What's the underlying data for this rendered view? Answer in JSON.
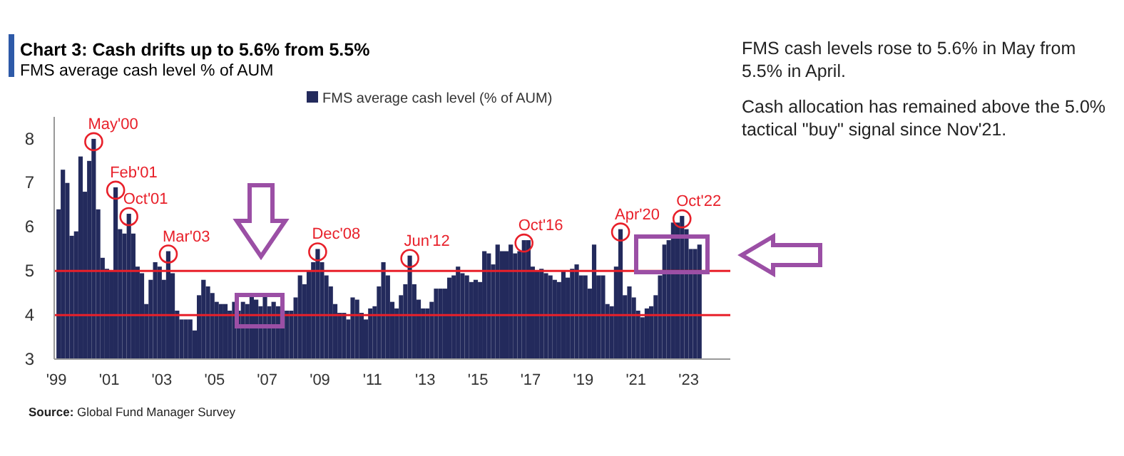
{
  "chart_data": {
    "type": "bar",
    "title": "Chart 3: Cash drifts up to 5.6% from 5.5%",
    "subtitle": "FMS average cash level % of AUM",
    "x": [
      "1999-01",
      "1999-03",
      "1999-05",
      "1999-07",
      "1999-09",
      "1999-11",
      "2000-01",
      "2000-03",
      "2000-05",
      "2000-07",
      "2000-09",
      "2000-11",
      "2001-01",
      "2001-03",
      "2001-05",
      "2001-07",
      "2001-09",
      "2001-11",
      "2002-01",
      "2002-03",
      "2002-05",
      "2002-07",
      "2002-09",
      "2002-11",
      "2003-01",
      "2003-03",
      "2003-05",
      "2003-07",
      "2003-09",
      "2003-11",
      "2004-01",
      "2004-03",
      "2004-05",
      "2004-07",
      "2004-09",
      "2004-11",
      "2005-01",
      "2005-03",
      "2005-05",
      "2005-07",
      "2005-09",
      "2005-11",
      "2006-01",
      "2006-03",
      "2006-05",
      "2006-07",
      "2006-09",
      "2006-11",
      "2007-01",
      "2007-03",
      "2007-05",
      "2007-07",
      "2007-09",
      "2007-11",
      "2008-01",
      "2008-03",
      "2008-05",
      "2008-07",
      "2008-09",
      "2008-11",
      "2009-01",
      "2009-03",
      "2009-05",
      "2009-07",
      "2009-09",
      "2009-11",
      "2010-01",
      "2010-03",
      "2010-05",
      "2010-07",
      "2010-09",
      "2010-11",
      "2011-01",
      "2011-03",
      "2011-05",
      "2011-07",
      "2011-09",
      "2011-11",
      "2012-01",
      "2012-03",
      "2012-05",
      "2012-07",
      "2012-09",
      "2012-11",
      "2013-01",
      "2013-03",
      "2013-05",
      "2013-07",
      "2013-09",
      "2013-11",
      "2014-01",
      "2014-03",
      "2014-05",
      "2014-07",
      "2014-09",
      "2014-11",
      "2015-01",
      "2015-03",
      "2015-05",
      "2015-07",
      "2015-09",
      "2015-11",
      "2016-01",
      "2016-03",
      "2016-05",
      "2016-07",
      "2016-09",
      "2016-11",
      "2017-01",
      "2017-03",
      "2017-05",
      "2017-07",
      "2017-09",
      "2017-11",
      "2018-01",
      "2018-03",
      "2018-05",
      "2018-07",
      "2018-09",
      "2018-11",
      "2019-01",
      "2019-03",
      "2019-05",
      "2019-07",
      "2019-09",
      "2019-11",
      "2020-01",
      "2020-03",
      "2020-05",
      "2020-07",
      "2020-09",
      "2020-11",
      "2021-01",
      "2021-03",
      "2021-05",
      "2021-07",
      "2021-09",
      "2021-11",
      "2022-01",
      "2022-03",
      "2022-05",
      "2022-07",
      "2022-09",
      "2022-11",
      "2023-01",
      "2023-03",
      "2023-05"
    ],
    "series": [
      {
        "name": "FMS average cash level (% of AUM)",
        "color": "#232a5c",
        "values": [
          6.4,
          7.3,
          7.0,
          5.8,
          5.9,
          7.6,
          6.8,
          7.5,
          8.0,
          6.4,
          5.3,
          5.05,
          5.0,
          6.9,
          5.95,
          5.85,
          6.3,
          5.85,
          5.1,
          4.95,
          4.25,
          4.8,
          5.2,
          5.1,
          4.8,
          5.45,
          4.95,
          4.1,
          3.9,
          3.9,
          3.9,
          3.65,
          4.45,
          4.8,
          4.65,
          4.5,
          4.3,
          4.25,
          4.25,
          4.1,
          4.3,
          4.1,
          4.3,
          4.25,
          4.45,
          4.35,
          4.2,
          4.45,
          4.2,
          4.3,
          4.2,
          4.1,
          4.1,
          4.1,
          4.4,
          4.9,
          4.7,
          5.0,
          5.2,
          5.5,
          5.2,
          4.9,
          4.65,
          4.25,
          4.05,
          4.05,
          3.9,
          4.4,
          4.35,
          4.05,
          3.9,
          4.15,
          4.2,
          4.65,
          5.2,
          4.9,
          4.3,
          4.15,
          4.45,
          4.7,
          5.35,
          4.7,
          4.35,
          4.15,
          4.15,
          4.3,
          4.6,
          4.6,
          4.6,
          4.85,
          4.9,
          5.1,
          4.95,
          4.9,
          4.75,
          4.8,
          4.75,
          5.45,
          5.4,
          5.15,
          5.6,
          5.45,
          5.45,
          5.6,
          5.4,
          5.45,
          5.7,
          5.7,
          5.1,
          5.0,
          5.05,
          4.95,
          4.9,
          4.8,
          4.75,
          5.0,
          4.85,
          5.05,
          5.15,
          4.9,
          4.9,
          4.6,
          5.6,
          4.9,
          4.9,
          4.25,
          4.2,
          5.1,
          5.95,
          4.45,
          4.65,
          4.4,
          4.1,
          3.95,
          4.15,
          4.2,
          4.45,
          4.9,
          5.6,
          5.7,
          6.1,
          6.1,
          6.25,
          5.95,
          5.5,
          5.5,
          5.6
        ]
      }
    ],
    "xlim": [
      "1998-12",
      "2024-08"
    ],
    "xticks": [
      {
        "value": "1999-01",
        "label": "'99"
      },
      {
        "value": "2001-01",
        "label": "'01"
      },
      {
        "value": "2003-01",
        "label": "'03"
      },
      {
        "value": "2005-01",
        "label": "'05"
      },
      {
        "value": "2007-01",
        "label": "'07"
      },
      {
        "value": "2009-01",
        "label": "'09"
      },
      {
        "value": "2011-01",
        "label": "'11"
      },
      {
        "value": "2013-01",
        "label": "'13"
      },
      {
        "value": "2015-01",
        "label": "'15"
      },
      {
        "value": "2017-01",
        "label": "'17"
      },
      {
        "value": "2019-01",
        "label": "'19"
      },
      {
        "value": "2021-01",
        "label": "'21"
      },
      {
        "value": "2023-01",
        "label": "'23"
      }
    ],
    "ylim": [
      3,
      8.5
    ],
    "yticks": [
      3,
      4,
      5,
      6,
      7,
      8
    ],
    "ref_lines": [
      {
        "axis": "y",
        "value": 5,
        "color": "#e8202a"
      },
      {
        "axis": "y",
        "value": 4,
        "color": "#e8202a"
      }
    ],
    "legend": "top",
    "annotations": [
      {
        "text": "May'00",
        "x": "2000-05",
        "y": 8.0
      },
      {
        "text": "Feb'01",
        "x": "2001-03",
        "y": 6.9
      },
      {
        "text": "Oct'01",
        "x": "2001-09",
        "y": 6.3
      },
      {
        "text": "Mar'03",
        "x": "2003-03",
        "y": 5.45
      },
      {
        "text": "Dec'08",
        "x": "2008-11",
        "y": 5.5
      },
      {
        "text": "Jun'12",
        "x": "2012-05",
        "y": 5.35
      },
      {
        "text": "Oct'16",
        "x": "2016-09",
        "y": 5.7
      },
      {
        "text": "Apr'20",
        "x": "2020-05",
        "y": 5.95
      },
      {
        "text": "Oct'22",
        "x": "2022-09",
        "y": 6.25
      },
      "FMS cash levels rose to 5.6% in May from 5.5% in April.",
      "Cash allocation has remained above the 5.0% tactical \"buy\" signal since Nov'21.",
      "Source: Global Fund Manager Survey"
    ]
  }
}
